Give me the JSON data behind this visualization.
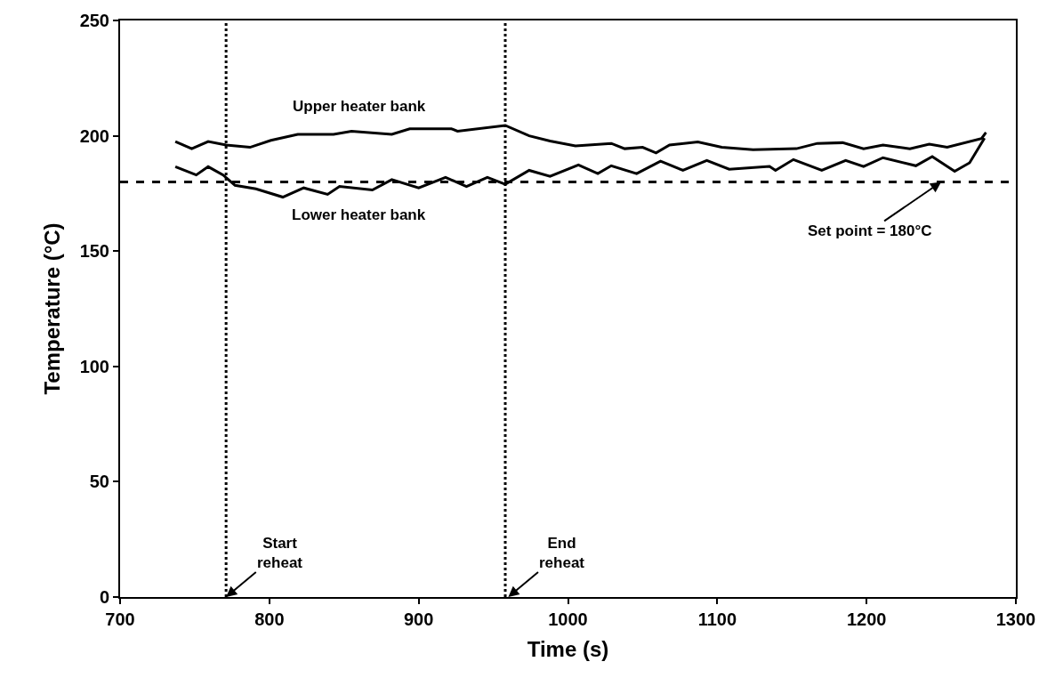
{
  "chart_data": {
    "type": "line",
    "xlabel": "Time (s)",
    "ylabel": "Temperature (°C)",
    "xlim": [
      700,
      1300
    ],
    "xticks": [
      700,
      800,
      900,
      1000,
      1100,
      1200,
      1300
    ],
    "ylim": [
      0,
      250
    ],
    "yticks": [
      0,
      50,
      100,
      150,
      200,
      250
    ],
    "legend": false,
    "marker": "none",
    "line_style": "solid",
    "series": [
      {
        "name": "Upper heater bank",
        "color": "#000000",
        "x": [
          737,
          748,
          759,
          771,
          787,
          801,
          819,
          843,
          855,
          882,
          894,
          922,
          926,
          958,
          974,
          988,
          1005,
          1029,
          1038,
          1050,
          1059,
          1068,
          1087,
          1103,
          1124,
          1153,
          1167,
          1184,
          1198,
          1211,
          1229,
          1242,
          1254,
          1277,
          1280
        ],
        "values": [
          197.5,
          194.4,
          197.5,
          196,
          195,
          198,
          200.6,
          200.6,
          202,
          200.6,
          203,
          203,
          202,
          204.5,
          200,
          197.7,
          195.6,
          196.7,
          194.4,
          195,
          192.6,
          196,
          197.3,
          195,
          194,
          194.4,
          196.7,
          197,
          194.4,
          196,
          194.4,
          196.4,
          195,
          198.8,
          201.4
        ]
      },
      {
        "name": "Lower heater bank",
        "color": "#000000",
        "x": [
          737,
          751,
          759,
          769,
          777,
          791,
          809,
          823,
          839,
          847,
          869,
          882,
          900,
          918,
          932,
          946,
          958,
          974,
          988,
          1007,
          1020,
          1029,
          1046,
          1062,
          1077,
          1093,
          1108,
          1135,
          1139,
          1151,
          1170,
          1186,
          1198,
          1211,
          1233,
          1244,
          1259,
          1269,
          1279
        ],
        "values": [
          186.6,
          183,
          186.6,
          183,
          178.5,
          177,
          173.4,
          177.4,
          174.6,
          178,
          176.5,
          181,
          177.4,
          182,
          178,
          182,
          179,
          185,
          182.4,
          187.4,
          183.6,
          187,
          183.6,
          189,
          185,
          189.3,
          185.5,
          186.7,
          185,
          189.7,
          185,
          189.3,
          186.7,
          190.5,
          187,
          191,
          184.6,
          188.3,
          199
        ]
      }
    ],
    "ref_lines": [
      {
        "axis": "y",
        "value": 180,
        "color": "#000000",
        "line_style": "dashed"
      },
      {
        "axis": "x",
        "value": 771,
        "color": "#000000",
        "line_style": "dotted"
      },
      {
        "axis": "x",
        "value": 958,
        "color": "#000000",
        "line_style": "dotted"
      }
    ],
    "annotations": [
      {
        "text": "Set point = 180°C",
        "x": 1250,
        "y": 180
      },
      {
        "text": "Start\nreheat",
        "x": 771,
        "y": 0
      },
      {
        "text": "End\nreheat",
        "x": 960,
        "y": 0
      }
    ]
  }
}
